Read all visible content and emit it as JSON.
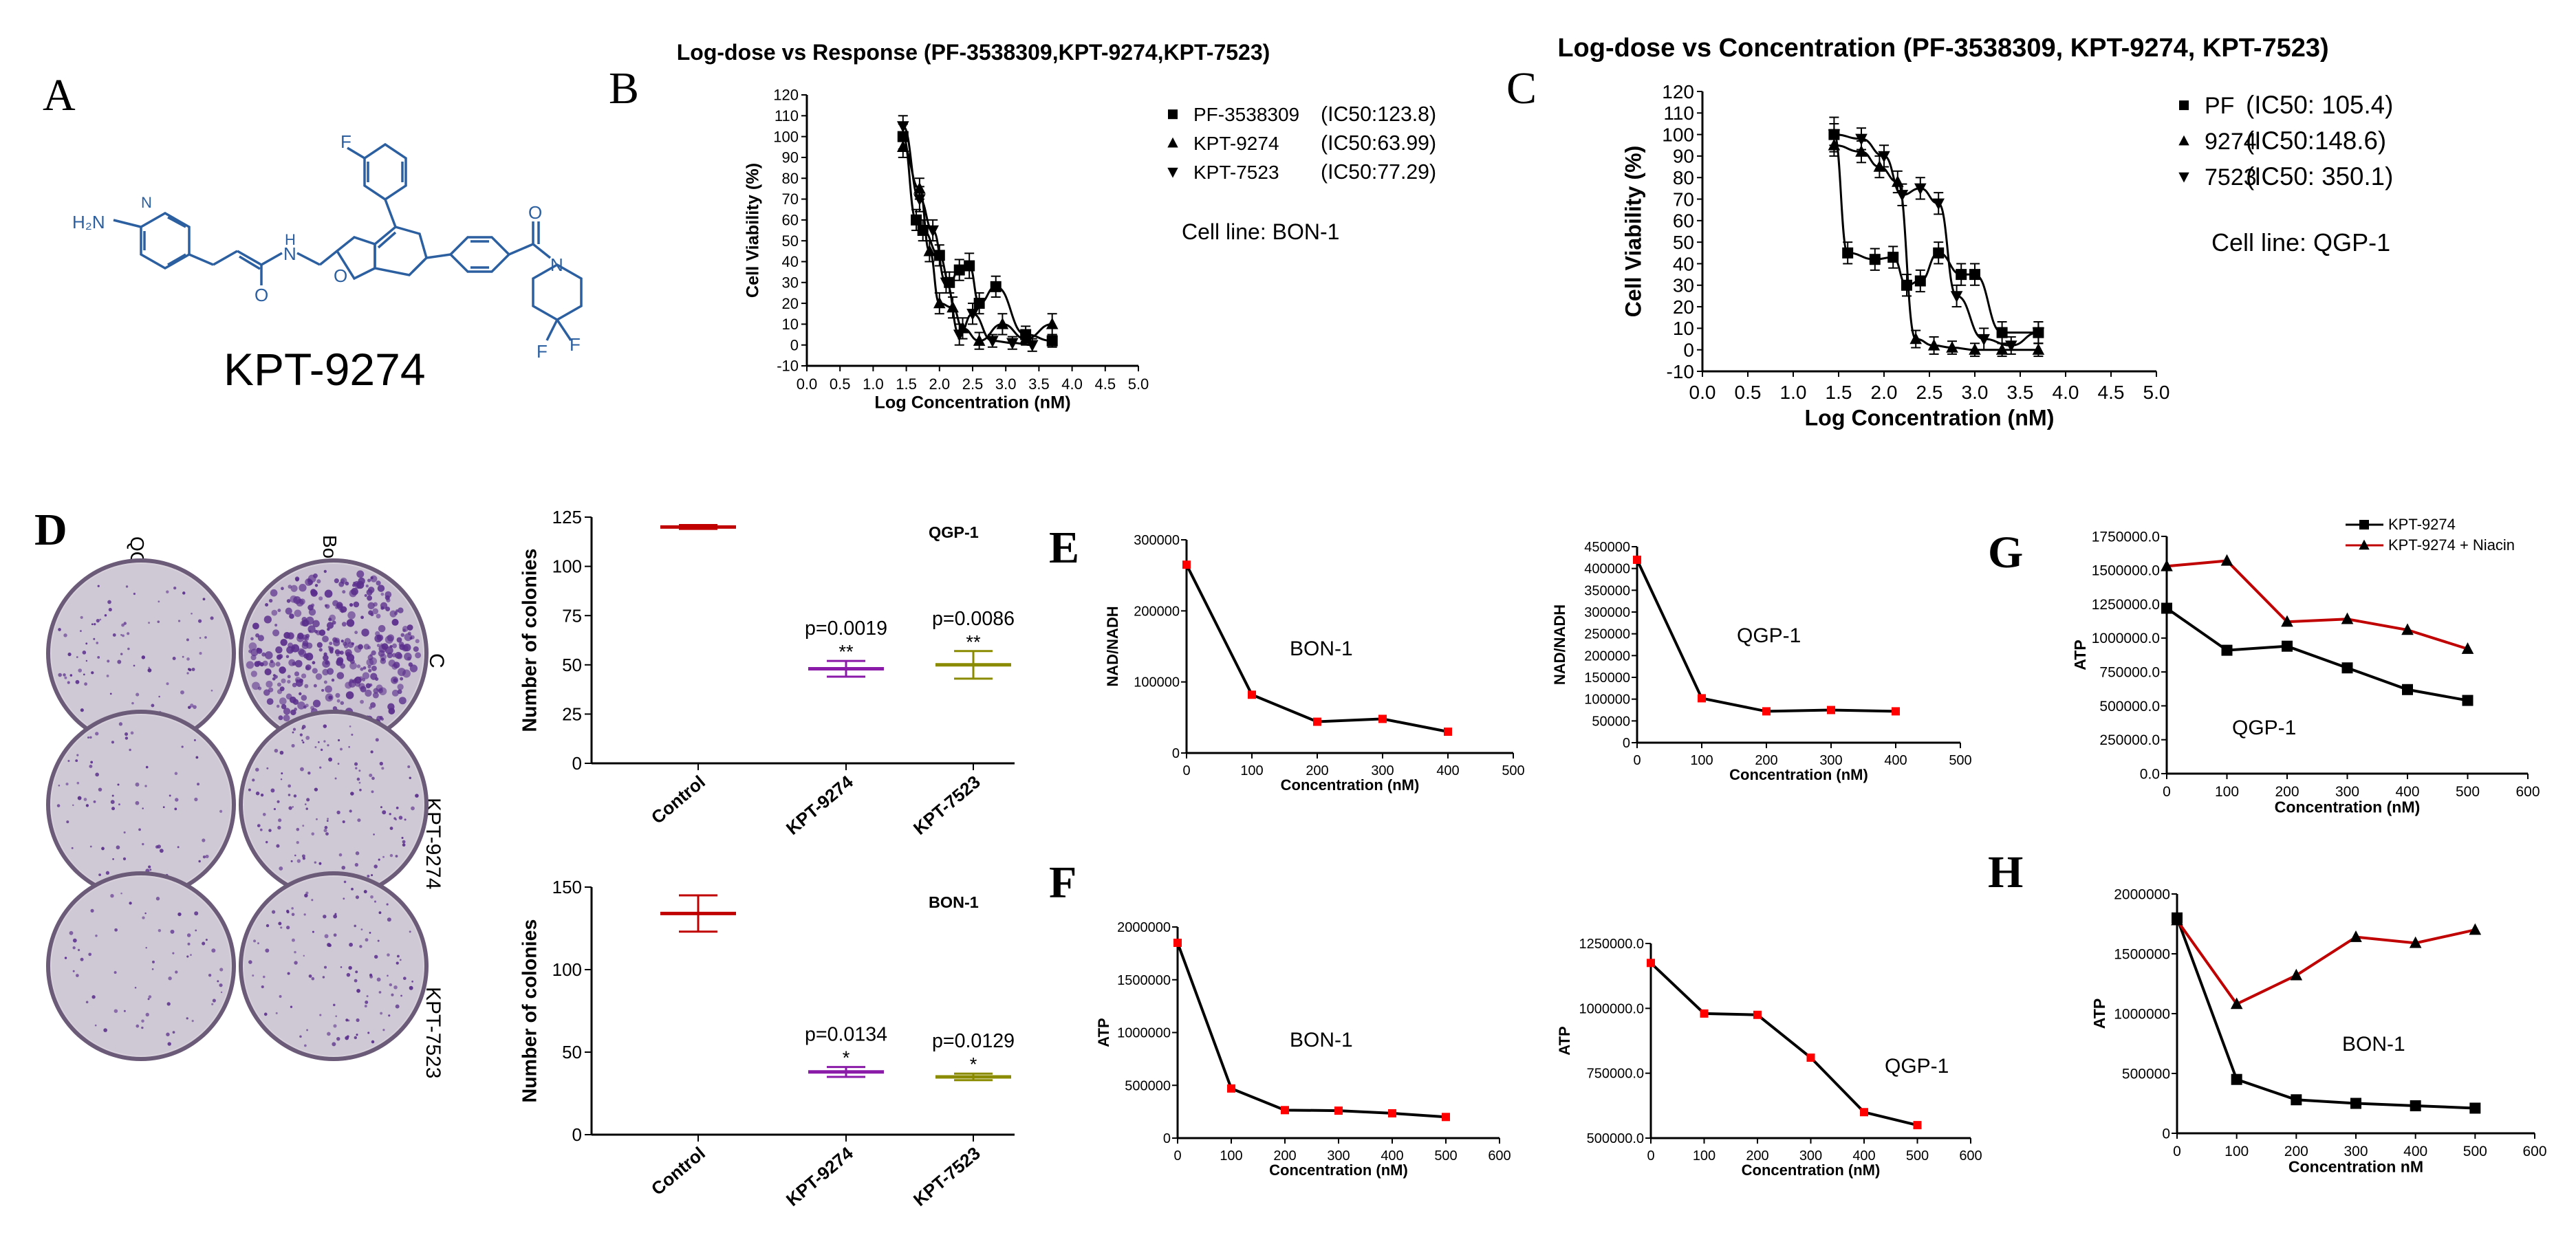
{
  "panel_letters": {
    "A": "A",
    "B": "B",
    "C": "C",
    "D": "D",
    "E": "E",
    "F": "F",
    "G": "G",
    "H": "H"
  },
  "molecule": {
    "name": "KPT-9274",
    "atoms": {
      "F1": "F",
      "N1": "N",
      "H2N": "H₂N",
      "H1": "H",
      "N2": "N",
      "O1": "O",
      "O2": "O",
      "O3": "O",
      "N3": "N",
      "F2": "F",
      "F3": "F"
    }
  },
  "colony_plates": {
    "column_labels": [
      "QGP-1",
      "Bon-1"
    ],
    "row_labels": [
      "C",
      "KPT-9274",
      "KPT-7523"
    ]
  },
  "colors": {
    "control": "#c00000",
    "kpt9274": "#8a1aa8",
    "kpt7523": "#8b8b00",
    "red_line": "#c00000",
    "marker_red": "#ff0000",
    "plate_purple": "#5a2e8c"
  },
  "chart_data": [
    {
      "id": "B",
      "type": "scatter",
      "title": "Log-dose vs Response (PF-3538309,KPT-9274,KPT-7523)",
      "xlabel": "Log Concentration (nM)",
      "ylabel": "Cell Viability (%)",
      "xlim": [
        0,
        5
      ],
      "ylim": [
        -10,
        120
      ],
      "xticks": [
        "0.0",
        "0.5",
        "1.0",
        "1.5",
        "2.0",
        "2.5",
        "3.0",
        "3.5",
        "4.0",
        "4.5",
        "5.0"
      ],
      "yticks": [
        "-10",
        "0",
        "10",
        "20",
        "30",
        "40",
        "50",
        "60",
        "70",
        "80",
        "90",
        "100",
        "110",
        "120"
      ],
      "legend": [
        {
          "name": "PF-3538309",
          "ic50": "(IC50:123.8)",
          "marker": "square"
        },
        {
          "name": "KPT-9274",
          "ic50": "(IC50:63.99)",
          "marker": "triangle-up"
        },
        {
          "name": "KPT-7523",
          "ic50": "(IC50:77.29)",
          "marker": "triangle-down"
        }
      ],
      "annotation": "Cell line: BON-1",
      "series": [
        {
          "name": "PF-3538309",
          "marker": "square",
          "x": [
            1.45,
            1.65,
            1.75,
            2.0,
            2.15,
            2.3,
            2.45,
            2.6,
            2.85,
            3.3,
            3.7
          ],
          "y": [
            100,
            60,
            55,
            43,
            30,
            36,
            38,
            20,
            28,
            5,
            2
          ],
          "err": [
            6,
            5,
            5,
            5,
            5,
            5,
            6,
            5,
            5,
            4,
            3
          ]
        },
        {
          "name": "KPT-9274",
          "marker": "triangle-up",
          "x": [
            1.45,
            1.7,
            1.85,
            2.0,
            2.2,
            2.35,
            2.6,
            2.95,
            3.3,
            3.7
          ],
          "y": [
            95,
            75,
            45,
            20,
            18,
            8,
            2,
            10,
            3,
            10
          ],
          "err": [
            5,
            5,
            5,
            5,
            5,
            5,
            4,
            5,
            3,
            5
          ]
        },
        {
          "name": "KPT-7523",
          "marker": "triangle-down",
          "x": [
            1.45,
            1.7,
            1.9,
            2.1,
            2.3,
            2.5,
            2.8,
            3.1,
            3.4
          ],
          "y": [
            105,
            70,
            55,
            30,
            5,
            15,
            2,
            1,
            0
          ],
          "err": [
            5,
            6,
            5,
            5,
            5,
            5,
            3,
            3,
            3
          ]
        }
      ]
    },
    {
      "id": "C",
      "type": "scatter",
      "title": "Log-dose vs Concentration (PF-3538309, KPT-9274, KPT-7523)",
      "xlabel": "Log Concentration (nM)",
      "ylabel": "Cell Viability (%)",
      "xlim": [
        0,
        5
      ],
      "ylim": [
        -10,
        120
      ],
      "xticks": [
        "0.0",
        "0.5",
        "1.0",
        "1.5",
        "2.0",
        "2.5",
        "3.0",
        "3.5",
        "4.0",
        "4.5",
        "5.0"
      ],
      "yticks": [
        "-10",
        "0",
        "10",
        "20",
        "30",
        "40",
        "50",
        "60",
        "70",
        "80",
        "90",
        "100",
        "110",
        "120"
      ],
      "legend": [
        {
          "name": "PF",
          "ic50": "(IC50: 105.4)",
          "marker": "square"
        },
        {
          "name": "9274",
          "ic50": "(IC50:148.6)",
          "marker": "triangle-up"
        },
        {
          "name": "7523",
          "ic50": "(IC50: 350.1)",
          "marker": "triangle-down"
        }
      ],
      "annotation": "Cell line: QGP-1",
      "series": [
        {
          "name": "PF",
          "marker": "square",
          "x": [
            1.45,
            1.6,
            1.9,
            2.1,
            2.25,
            2.4,
            2.6,
            2.85,
            3.0,
            3.3,
            3.7
          ],
          "y": [
            100,
            45,
            42,
            43,
            30,
            32,
            45,
            35,
            35,
            8,
            8
          ],
          "err": [
            8,
            5,
            5,
            5,
            5,
            5,
            5,
            5,
            5,
            5,
            5
          ]
        },
        {
          "name": "9274",
          "marker": "triangle-up",
          "x": [
            1.45,
            1.75,
            1.95,
            2.15,
            2.35,
            2.55,
            2.75,
            3.0,
            3.3,
            3.7
          ],
          "y": [
            95,
            92,
            85,
            78,
            5,
            2,
            1,
            0,
            0,
            0
          ],
          "err": [
            5,
            5,
            5,
            5,
            4,
            4,
            3,
            3,
            3,
            3
          ]
        },
        {
          "name": "7523",
          "marker": "triangle-down",
          "x": [
            1.45,
            1.75,
            2.0,
            2.2,
            2.4,
            2.6,
            2.8,
            3.1,
            3.4,
            3.7
          ],
          "y": [
            100,
            98,
            90,
            72,
            75,
            68,
            25,
            5,
            2,
            8
          ],
          "err": [
            5,
            5,
            5,
            5,
            5,
            5,
            5,
            5,
            4,
            5
          ]
        }
      ]
    },
    {
      "id": "D1",
      "type": "bar",
      "title": "QGP-1",
      "ylabel": "Number of colonies",
      "categories": [
        "Control",
        "KPT-9274",
        "KPT-7523"
      ],
      "values": [
        120,
        48,
        50
      ],
      "errors": [
        1,
        4,
        7
      ],
      "ylim": [
        0,
        125
      ],
      "yticks": [
        "0",
        "25",
        "50",
        "75",
        "100",
        "125"
      ],
      "pvalues": [
        "",
        "p=0.0019",
        "p=0.0086"
      ],
      "stars": [
        "",
        "**",
        "**"
      ]
    },
    {
      "id": "D2",
      "type": "bar",
      "title": "BON-1",
      "ylabel": "Number of colonies",
      "categories": [
        "Control",
        "KPT-9274",
        "KPT-7523"
      ],
      "values": [
        134,
        38,
        35
      ],
      "errors": [
        11,
        3,
        2
      ],
      "ylim": [
        0,
        150
      ],
      "yticks": [
        "0",
        "50",
        "100",
        "150"
      ],
      "pvalues": [
        "",
        "p=0.0134",
        "p=0.0129"
      ],
      "stars": [
        "",
        "*",
        "*"
      ]
    },
    {
      "id": "E1",
      "type": "line",
      "annotation": "BON-1",
      "xlabel": "Concentration (nM)",
      "ylabel": "NAD/NADH",
      "xlim": [
        0,
        500
      ],
      "ylim": [
        0,
        300000
      ],
      "xticks": [
        "0",
        "100",
        "200",
        "300",
        "400",
        "500"
      ],
      "yticks": [
        "0",
        "100000",
        "200000",
        "300000"
      ],
      "x": [
        0,
        100,
        200,
        300,
        400
      ],
      "y": [
        265000,
        82000,
        44000,
        48000,
        30000
      ]
    },
    {
      "id": "E2",
      "type": "line",
      "annotation": "QGP-1",
      "xlabel": "Concentration (nM)",
      "ylabel": "NAD/NADH",
      "xlim": [
        0,
        500
      ],
      "ylim": [
        0,
        450000
      ],
      "xticks": [
        "0",
        "100",
        "200",
        "300",
        "400",
        "500"
      ],
      "yticks": [
        "0",
        "50000",
        "100000",
        "150000",
        "200000",
        "250000",
        "300000",
        "350000",
        "400000",
        "450000"
      ],
      "x": [
        0,
        100,
        200,
        300,
        400
      ],
      "y": [
        420000,
        102000,
        72000,
        75000,
        72000
      ]
    },
    {
      "id": "F1",
      "type": "line",
      "annotation": "BON-1",
      "xlabel": "Concentration (nM)",
      "ylabel": "ATP",
      "xlim": [
        0,
        600
      ],
      "ylim": [
        0,
        2000000
      ],
      "xticks": [
        "0",
        "100",
        "200",
        "300",
        "400",
        "500",
        "600"
      ],
      "yticks": [
        "0",
        "500000",
        "1000000",
        "1500000",
        "2000000"
      ],
      "x": [
        0,
        100,
        200,
        300,
        400,
        500
      ],
      "y": [
        1850000,
        470000,
        265000,
        260000,
        235000,
        200000
      ]
    },
    {
      "id": "F2",
      "type": "line",
      "annotation": "QGP-1",
      "xlabel": "Concentration (nM)",
      "ylabel": "ATP",
      "xlim": [
        0,
        600
      ],
      "ylim": [
        500000,
        1250000
      ],
      "xticks": [
        "0",
        "100",
        "200",
        "300",
        "400",
        "500",
        "600"
      ],
      "yticks": [
        "500000.0",
        "750000.0",
        "1000000.0",
        "1250000.0"
      ],
      "x": [
        0,
        100,
        200,
        300,
        400,
        500
      ],
      "y": [
        1175000,
        980000,
        975000,
        810000,
        600000,
        550000
      ]
    },
    {
      "id": "G",
      "type": "line",
      "annotation": "QGP-1",
      "xlabel": "Concentration (nM)",
      "ylabel": "ATP",
      "xlim": [
        0,
        600
      ],
      "ylim": [
        0,
        1750000
      ],
      "xticks": [
        "0",
        "100",
        "200",
        "300",
        "400",
        "500",
        "600"
      ],
      "yticks": [
        "0.0",
        "250000.0",
        "500000.0",
        "750000.0",
        "1000000.0",
        "1250000.0",
        "1500000.0",
        "1750000.0"
      ],
      "legend": [
        "KPT-9274",
        "KPT-9274 + Niacin"
      ],
      "series": [
        {
          "name": "KPT-9274",
          "marker": "square",
          "color": "#000000",
          "x": [
            0,
            100,
            200,
            300,
            400,
            500
          ],
          "y": [
            1220000,
            910000,
            940000,
            780000,
            620000,
            540000
          ]
        },
        {
          "name": "KPT-9274 + Niacin",
          "marker": "triangle-up",
          "color": "#c00000",
          "x": [
            0,
            100,
            200,
            300,
            400,
            500
          ],
          "y": [
            1530000,
            1570000,
            1120000,
            1140000,
            1060000,
            920000
          ]
        }
      ]
    },
    {
      "id": "H",
      "type": "line",
      "annotation": "BON-1",
      "xlabel": "Concentration nM",
      "ylabel": "ATP",
      "xlim": [
        0,
        600
      ],
      "ylim": [
        0,
        2000000
      ],
      "xticks": [
        "0",
        "100",
        "200",
        "300",
        "400",
        "500",
        "600"
      ],
      "yticks": [
        "0",
        "500000",
        "1000000",
        "1500000",
        "2000000"
      ],
      "series": [
        {
          "name": "KPT-9274",
          "marker": "square",
          "color": "#000000",
          "x": [
            0,
            100,
            200,
            300,
            400,
            500
          ],
          "y": [
            1800000,
            450000,
            280000,
            250000,
            230000,
            210000
          ]
        },
        {
          "name": "KPT-9274 + Niacin",
          "marker": "triangle-up",
          "color": "#c00000",
          "x": [
            0,
            100,
            200,
            300,
            400,
            500
          ],
          "y": [
            1780000,
            1080000,
            1320000,
            1640000,
            1590000,
            1700000
          ]
        }
      ]
    }
  ]
}
